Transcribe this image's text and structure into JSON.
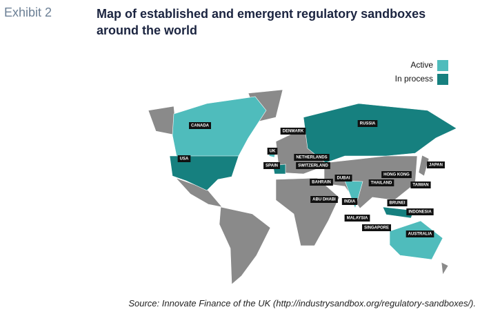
{
  "header": {
    "exhibit": "Exhibit 2",
    "title": "Map of established and emergent regulatory sandboxes around the world"
  },
  "legend": {
    "items": [
      {
        "label": "Active",
        "color": "#4fbcbc"
      },
      {
        "label": "In process",
        "color": "#16807f"
      }
    ]
  },
  "map": {
    "labels": [
      "CANADA",
      "DENMARK",
      "RUSSIA",
      "UK",
      "NETHERLANDS",
      "USA",
      "SPAIN",
      "SWITZERLAND",
      "JAPAN",
      "HONG KONG",
      "DUBAI",
      "BAHRAIN",
      "THAILAND",
      "TAIWAN",
      "ABU DHABI",
      "INDIA",
      "BRUNEI",
      "INDONESIA",
      "MALAYSIA",
      "SINGAPORE",
      "AUSTRALIA"
    ]
  },
  "source": "Source: Innovate Finance of the UK (http://industrysandbox.org/regulatory-sandboxes/)."
}
